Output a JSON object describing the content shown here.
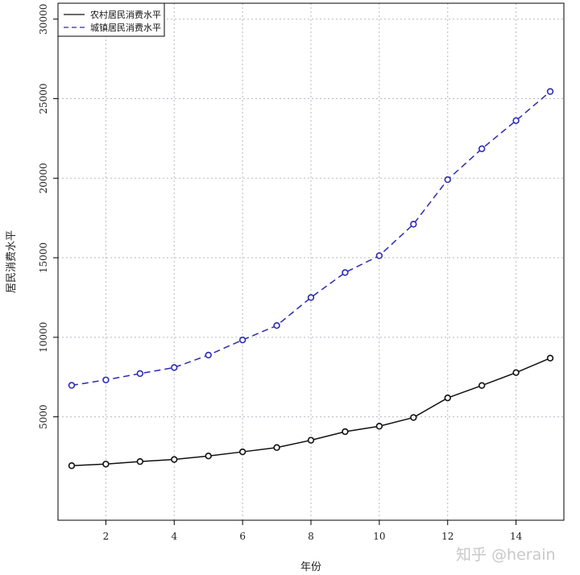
{
  "chart_data": {
    "type": "line",
    "xlabel": "年份",
    "ylabel": "居民消费水平",
    "xlim": [
      0.6,
      15.4
    ],
    "ylim": [
      -1500,
      31000
    ],
    "x_ticks": [
      2,
      4,
      6,
      8,
      10,
      12,
      14
    ],
    "y_ticks": [
      5000,
      10000,
      15000,
      20000,
      25000,
      30000
    ],
    "grid": true,
    "legend_position": "top-left",
    "x": [
      1,
      2,
      3,
      4,
      5,
      6,
      7,
      8,
      9,
      10,
      11,
      12,
      13,
      14,
      15
    ],
    "series": [
      {
        "name": "农村居民消费水平",
        "values": [
          1930,
          2030,
          2190,
          2320,
          2540,
          2800,
          3070,
          3530,
          4070,
          4410,
          4960,
          6190,
          6970,
          7780,
          8690
        ],
        "color": "#111111",
        "line_style": "solid",
        "marker": "circle"
      },
      {
        "name": "城镇居民消费水平",
        "values": [
          6980,
          7320,
          7720,
          8100,
          8880,
          9830,
          10740,
          12500,
          14070,
          15130,
          17110,
          19910,
          21850,
          23620,
          25450
        ],
        "color": "#2b2bb5",
        "line_style": "dashed",
        "marker": "circle"
      }
    ]
  },
  "watermark": "知乎 @herain"
}
